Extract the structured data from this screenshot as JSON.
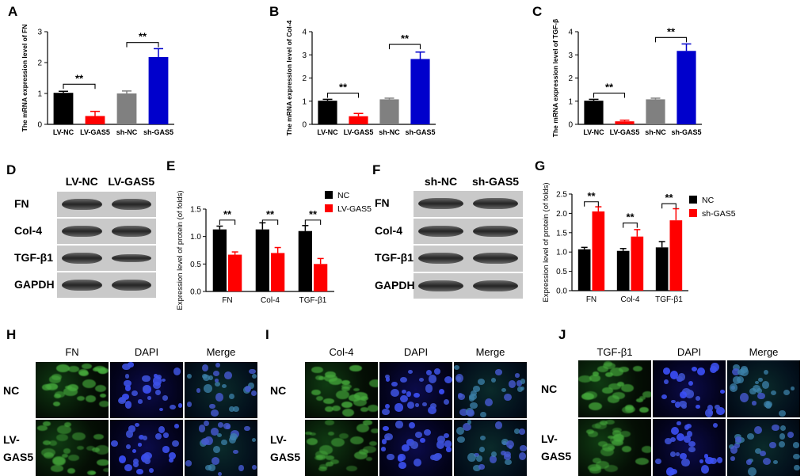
{
  "panels": {
    "A": {
      "letter": "A",
      "ylabel": "The mRNA expression level of FN",
      "ymax": 3,
      "yticks": [
        0,
        1,
        2,
        3
      ],
      "categories": [
        "LV-NC",
        "LV-GAS5",
        "sh-NC",
        "sh-GAS5"
      ],
      "values": [
        1.02,
        0.27,
        1.0,
        2.18
      ],
      "errors": [
        0.05,
        0.15,
        0.08,
        0.27
      ],
      "colors": [
        "#000000",
        "#ff0000",
        "#808080",
        "#0000cc"
      ],
      "sig": [
        {
          "from": 0,
          "to": 1,
          "label": "**",
          "y": 1.3
        },
        {
          "from": 2,
          "to": 3,
          "label": "**",
          "y": 2.65
        }
      ]
    },
    "B": {
      "letter": "B",
      "ylabel": "The mRNA expression level of Col-4",
      "ymax": 4,
      "yticks": [
        0,
        1,
        2,
        3,
        4
      ],
      "categories": [
        "LV-NC",
        "LV-GAS5",
        "sh-NC",
        "sh-GAS5"
      ],
      "values": [
        1.02,
        0.35,
        1.08,
        2.82
      ],
      "errors": [
        0.06,
        0.12,
        0.05,
        0.3
      ],
      "colors": [
        "#000000",
        "#ff0000",
        "#808080",
        "#0000cc"
      ],
      "sig": [
        {
          "from": 0,
          "to": 1,
          "label": "**",
          "y": 1.35
        },
        {
          "from": 2,
          "to": 3,
          "label": "**",
          "y": 3.45
        }
      ]
    },
    "C": {
      "letter": "C",
      "ylabel": "The mRNA expression level of TGF-β",
      "ymax": 4,
      "yticks": [
        0,
        1,
        2,
        3,
        4
      ],
      "categories": [
        "LV-NC",
        "LV-GAS5",
        "sh-NC",
        "sh-GAS5"
      ],
      "values": [
        1.02,
        0.13,
        1.08,
        3.17
      ],
      "errors": [
        0.06,
        0.05,
        0.05,
        0.3
      ],
      "colors": [
        "#000000",
        "#ff0000",
        "#808080",
        "#0000cc"
      ],
      "sig": [
        {
          "from": 0,
          "to": 1,
          "label": "**",
          "y": 1.35
        },
        {
          "from": 2,
          "to": 3,
          "label": "**",
          "y": 3.75
        }
      ]
    },
    "E": {
      "letter": "E",
      "ylabel": "Expression level of protein (of folds)",
      "ymax": 1.5,
      "yticks": [
        0,
        0.5,
        1.0,
        1.5
      ],
      "ticklabels": [
        "0.0",
        "0.5",
        "1.0",
        "1.5"
      ],
      "groups": [
        "FN",
        "Col-4",
        "TGF-β1"
      ],
      "series": [
        {
          "name": "NC",
          "color": "#000000",
          "values": [
            1.13,
            1.13,
            1.1
          ],
          "errors": [
            0.06,
            0.12,
            0.1
          ]
        },
        {
          "name": "LV-GAS5",
          "color": "#ff0000",
          "values": [
            0.67,
            0.7,
            0.5
          ],
          "errors": [
            0.05,
            0.1,
            0.1
          ]
        }
      ],
      "sig": [
        {
          "group": 0,
          "label": "**",
          "y": 1.3
        },
        {
          "group": 1,
          "label": "**",
          "y": 1.3
        },
        {
          "group": 2,
          "label": "**",
          "y": 1.3
        }
      ]
    },
    "G": {
      "letter": "G",
      "ylabel": "Expression level of protein (of folds)",
      "ymax": 2.5,
      "yticks": [
        0,
        0.5,
        1.0,
        1.5,
        2.0,
        2.5
      ],
      "ticklabels": [
        "0.0",
        "0.5",
        "1.0",
        "1.5",
        "2.0",
        "2.5"
      ],
      "groups": [
        "FN",
        "Col-4",
        "TGF-β1"
      ],
      "series": [
        {
          "name": "NC",
          "color": "#000000",
          "values": [
            1.07,
            1.03,
            1.12
          ],
          "errors": [
            0.05,
            0.06,
            0.15
          ]
        },
        {
          "name": "sh-GAS5",
          "color": "#ff0000",
          "values": [
            2.05,
            1.4,
            1.82
          ],
          "errors": [
            0.12,
            0.18,
            0.3
          ]
        }
      ],
      "sig": [
        {
          "group": 0,
          "label": "**",
          "y": 2.3
        },
        {
          "group": 1,
          "label": "**",
          "y": 1.75
        },
        {
          "group": 2,
          "label": "**",
          "y": 2.25
        }
      ]
    }
  },
  "blots": {
    "D": {
      "letter": "D",
      "columns": [
        "LV-NC",
        "LV-GAS5"
      ],
      "rows": [
        "FN",
        "Col-4",
        "TGF-β1",
        "GAPDH"
      ]
    },
    "F": {
      "letter": "F",
      "columns": [
        "sh-NC",
        "sh-GAS5"
      ],
      "rows": [
        "FN",
        "Col-4",
        "TGF-β1",
        "GAPDH"
      ]
    }
  },
  "immuno": {
    "H": {
      "letter": "H",
      "columns": [
        "FN",
        "DAPI",
        "Merge"
      ],
      "rows": [
        "NC",
        "LV-\nGAS5"
      ]
    },
    "I": {
      "letter": "I",
      "columns": [
        "Col-4",
        "DAPI",
        "Merge"
      ],
      "rows": [
        "NC",
        "LV-\nGAS5"
      ]
    },
    "J": {
      "letter": "J",
      "columns": [
        "TGF-β1",
        "DAPI",
        "Merge"
      ],
      "rows": [
        "NC",
        "LV-\nGAS5"
      ]
    }
  }
}
